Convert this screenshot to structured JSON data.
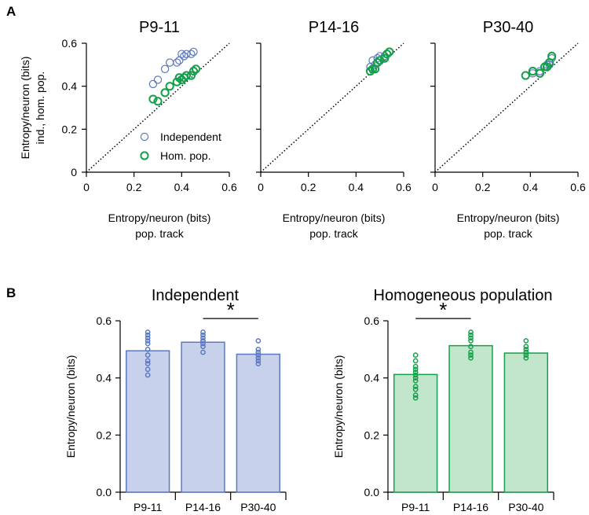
{
  "panel_labels": {
    "a": "A",
    "b": "B"
  },
  "legend": {
    "independent": "Independent",
    "homogeneous": "Hom. pop."
  },
  "colors": {
    "independent": "#5b78c0",
    "homogeneous": "#14a04a",
    "bar_ind_fill": "#c8d1ec",
    "bar_hom_fill": "#c2e6cb",
    "diagonal": "#000000"
  },
  "chart_data": [
    {
      "type": "scatter",
      "title": "P9-11",
      "xlabel": [
        "Entropy/neuron (bits)",
        "pop. track"
      ],
      "ylabel": [
        "Entropy/neuron (bits)",
        "ind., hom. pop."
      ],
      "xlim": [
        0,
        0.6
      ],
      "ylim": [
        0,
        0.6
      ],
      "xticks": [
        "0",
        "0.2",
        "0.4",
        "0.6"
      ],
      "yticks": [
        "0",
        "0.2",
        "0.4",
        "0.6"
      ],
      "series": [
        {
          "name": "Independent",
          "x": [
            0.28,
            0.3,
            0.33,
            0.35,
            0.38,
            0.39,
            0.4,
            0.41,
            0.42,
            0.44,
            0.45
          ],
          "y": [
            0.41,
            0.43,
            0.48,
            0.51,
            0.51,
            0.52,
            0.55,
            0.54,
            0.55,
            0.55,
            0.56
          ]
        },
        {
          "name": "Hom. pop.",
          "x": [
            0.28,
            0.3,
            0.33,
            0.35,
            0.38,
            0.39,
            0.4,
            0.41,
            0.42,
            0.44,
            0.45,
            0.46
          ],
          "y": [
            0.34,
            0.33,
            0.37,
            0.4,
            0.42,
            0.44,
            0.43,
            0.44,
            0.45,
            0.45,
            0.47,
            0.48
          ]
        }
      ]
    },
    {
      "type": "scatter",
      "title": "P14-16",
      "xlabel": [
        "Entropy/neuron (bits)",
        "pop. track"
      ],
      "ylabel": [],
      "xlim": [
        0,
        0.6
      ],
      "ylim": [
        0,
        0.6
      ],
      "xticks": [
        "0",
        "0.2",
        "0.4",
        "0.6"
      ],
      "yticks": [],
      "series": [
        {
          "name": "Independent",
          "x": [
            0.46,
            0.47,
            0.48,
            0.49,
            0.5,
            0.52,
            0.53,
            0.54
          ],
          "y": [
            0.49,
            0.52,
            0.5,
            0.53,
            0.54,
            0.54,
            0.55,
            0.56
          ]
        },
        {
          "name": "Hom. pop.",
          "x": [
            0.46,
            0.47,
            0.48,
            0.49,
            0.5,
            0.52,
            0.53,
            0.54
          ],
          "y": [
            0.47,
            0.48,
            0.48,
            0.51,
            0.52,
            0.53,
            0.55,
            0.56
          ]
        }
      ]
    },
    {
      "type": "scatter",
      "title": "P30-40",
      "xlabel": [
        "Entropy/neuron (bits)",
        "pop. track"
      ],
      "ylabel": [],
      "xlim": [
        0,
        0.6
      ],
      "ylim": [
        0,
        0.6
      ],
      "xticks": [
        "0",
        "0.2",
        "0.4",
        "0.6"
      ],
      "yticks": [],
      "series": [
        {
          "name": "Independent",
          "x": [
            0.38,
            0.41,
            0.44,
            0.46,
            0.47,
            0.48,
            0.49
          ],
          "y": [
            0.45,
            0.46,
            0.47,
            0.49,
            0.5,
            0.5,
            0.53
          ]
        },
        {
          "name": "Hom. pop.",
          "x": [
            0.38,
            0.41,
            0.44,
            0.46,
            0.47,
            0.48,
            0.49
          ],
          "y": [
            0.45,
            0.47,
            0.46,
            0.49,
            0.49,
            0.51,
            0.54
          ]
        }
      ]
    },
    {
      "type": "bar",
      "title": "Independent",
      "categories": [
        "P9-11",
        "P14-16",
        "P30-40"
      ],
      "values": [
        0.495,
        0.525,
        0.483
      ],
      "points": [
        [
          0.41,
          0.43,
          0.45,
          0.46,
          0.48,
          0.5,
          0.52,
          0.53,
          0.54,
          0.55,
          0.56
        ],
        [
          0.49,
          0.51,
          0.52,
          0.53,
          0.53,
          0.54,
          0.55,
          0.56
        ],
        [
          0.45,
          0.46,
          0.47,
          0.48,
          0.49,
          0.5,
          0.53
        ]
      ],
      "ylabel": "Entropy/neuron (bits)",
      "ylim": [
        0,
        0.6
      ],
      "yticks": [
        "0.0",
        "0.2",
        "0.4",
        "0.6"
      ],
      "significance": {
        "from": 1,
        "to": 2,
        "label": "*"
      }
    },
    {
      "type": "bar",
      "title": "Homogeneous population",
      "categories": [
        "P9-11",
        "P14-16",
        "P30-40"
      ],
      "values": [
        0.412,
        0.513,
        0.487
      ],
      "points": [
        [
          0.33,
          0.34,
          0.36,
          0.37,
          0.39,
          0.4,
          0.41,
          0.42,
          0.43,
          0.44,
          0.46,
          0.48
        ],
        [
          0.47,
          0.48,
          0.49,
          0.51,
          0.53,
          0.54,
          0.55,
          0.56
        ],
        [
          0.47,
          0.48,
          0.49,
          0.49,
          0.5,
          0.51,
          0.53
        ]
      ],
      "ylabel": "Entropy/neuron (bits)",
      "ylim": [
        0,
        0.6
      ],
      "yticks": [
        "0.0",
        "0.2",
        "0.4",
        "0.6"
      ],
      "significance": {
        "from": 0,
        "to": 1,
        "label": "*"
      }
    }
  ]
}
